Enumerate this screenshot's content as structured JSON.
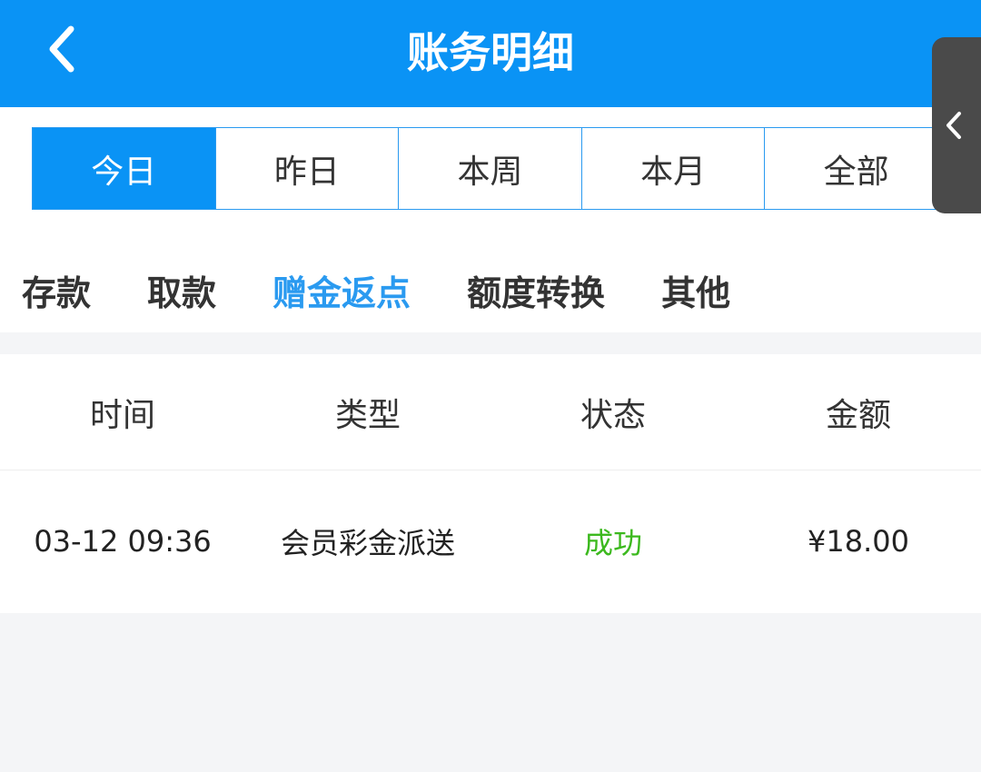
{
  "header": {
    "title": "账务明细",
    "back_icon": "chevron-left-icon"
  },
  "date_tabs": [
    {
      "label": "今日",
      "active": true
    },
    {
      "label": "昨日"
    },
    {
      "label": "本周"
    },
    {
      "label": "本月"
    },
    {
      "label": "全部"
    }
  ],
  "categories": [
    {
      "label": "存款"
    },
    {
      "label": "取款"
    },
    {
      "label": "赠金返点",
      "active": true
    },
    {
      "label": "额度转换"
    },
    {
      "label": "其他"
    }
  ],
  "table": {
    "columns": [
      "时间",
      "类型",
      "状态",
      "金额"
    ],
    "rows": [
      {
        "time": "03-12 09:36",
        "type": "会员彩金派送",
        "status": "成功",
        "amount": "¥18.00"
      }
    ]
  },
  "colors": {
    "primary": "#0a93f5",
    "success": "#3cb91e"
  },
  "side_handle": {
    "icon": "chevron-left-icon"
  }
}
